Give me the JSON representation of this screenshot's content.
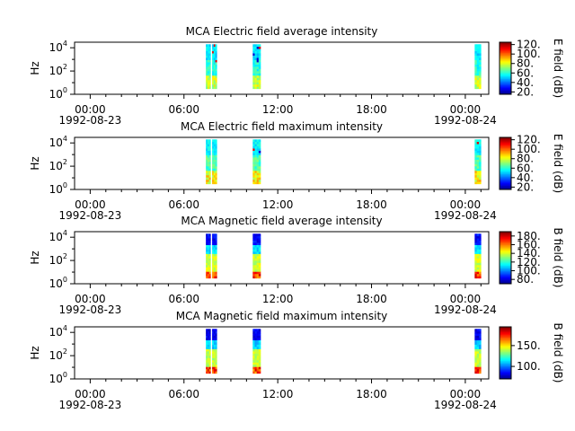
{
  "chart_data": [
    {
      "type": "heatmap",
      "title": "MCA  Electric field average intensity",
      "ylabel": "Hz",
      "colorbar_label": "E field (dB)",
      "colorbar_range": [
        15,
        125
      ],
      "colorbar_ticks": [
        "20.",
        "40.",
        "60.",
        "80.",
        "100.",
        "120."
      ],
      "colorbar_tick_values": [
        20,
        40,
        60,
        80,
        100,
        120
      ],
      "yscale": "log",
      "ylim": [
        1,
        30000
      ],
      "y_ticks": [
        {
          "base": "10",
          "exp": "0",
          "value": 1
        },
        {
          "base": "10",
          "exp": "2",
          "value": 100
        },
        {
          "base": "10",
          "exp": "4",
          "value": 10000
        }
      ],
      "x_range_hours": [
        -1,
        25.5
      ],
      "x_ticks": [
        {
          "hour": 0,
          "time": "00:00",
          "date": "1992-08-23"
        },
        {
          "hour": 6,
          "time": "06:00",
          "date": ""
        },
        {
          "hour": 12,
          "time": "12:00",
          "date": ""
        },
        {
          "hour": 18,
          "time": "18:00",
          "date": ""
        },
        {
          "hour": 24,
          "time": "00:00",
          "date": "1992-08-24"
        }
      ],
      "data_intervals_hours": [
        [
          7.4,
          7.7
        ],
        [
          7.8,
          8.1
        ],
        [
          10.4,
          10.9
        ],
        [
          24.6,
          25.0
        ]
      ],
      "intensity_profile": "low frequencies 55-75 dB (green), higher frequencies 40-60 dB (cyan), isolated red/blue spots near 10^3-10^4 Hz"
    },
    {
      "type": "heatmap",
      "title": "MCA  Electric field maximum intensity",
      "ylabel": "Hz",
      "colorbar_label": "E field (dB)",
      "colorbar_range": [
        15,
        125
      ],
      "colorbar_ticks": [
        "20.",
        "40.",
        "60.",
        "80.",
        "100.",
        "120."
      ],
      "colorbar_tick_values": [
        20,
        40,
        60,
        80,
        100,
        120
      ],
      "yscale": "log",
      "ylim": [
        1,
        30000
      ],
      "y_ticks": [
        {
          "base": "10",
          "exp": "0",
          "value": 1
        },
        {
          "base": "10",
          "exp": "2",
          "value": 100
        },
        {
          "base": "10",
          "exp": "4",
          "value": 10000
        }
      ],
      "x_range_hours": [
        -1,
        25.5
      ],
      "x_ticks": [
        {
          "hour": 0,
          "time": "00:00",
          "date": "1992-08-23"
        },
        {
          "hour": 6,
          "time": "06:00",
          "date": ""
        },
        {
          "hour": 12,
          "time": "12:00",
          "date": ""
        },
        {
          "hour": 18,
          "time": "18:00",
          "date": ""
        },
        {
          "hour": 24,
          "time": "00:00",
          "date": "1992-08-24"
        }
      ],
      "data_intervals_hours": [
        [
          7.4,
          7.7
        ],
        [
          7.8,
          8.1
        ],
        [
          10.4,
          10.9
        ],
        [
          24.6,
          25.0
        ]
      ],
      "intensity_profile": "low frequencies 60-85 dB (green-yellow), higher frequencies 45-65 dB, isolated spots near 10^3-10^4 Hz"
    },
    {
      "type": "heatmap",
      "title": "MCA  Magnetic field average intensity",
      "ylabel": "Hz",
      "colorbar_label": "B field (dB)",
      "colorbar_range": [
        70,
        190
      ],
      "colorbar_ticks": [
        "80.",
        "100.",
        "120.",
        "140.",
        "160.",
        "180."
      ],
      "colorbar_tick_values": [
        80,
        100,
        120,
        140,
        160,
        180
      ],
      "yscale": "log",
      "ylim": [
        1,
        30000
      ],
      "y_ticks": [
        {
          "base": "10",
          "exp": "0",
          "value": 1
        },
        {
          "base": "10",
          "exp": "2",
          "value": 100
        },
        {
          "base": "10",
          "exp": "4",
          "value": 10000
        }
      ],
      "x_range_hours": [
        -1,
        25.5
      ],
      "x_ticks": [
        {
          "hour": 0,
          "time": "00:00",
          "date": "1992-08-23"
        },
        {
          "hour": 6,
          "time": "06:00",
          "date": ""
        },
        {
          "hour": 12,
          "time": "12:00",
          "date": ""
        },
        {
          "hour": 18,
          "time": "18:00",
          "date": ""
        },
        {
          "hour": 24,
          "time": "00:00",
          "date": "1992-08-24"
        }
      ],
      "data_intervals_hours": [
        [
          7.4,
          7.7
        ],
        [
          7.8,
          8.1
        ],
        [
          10.4,
          10.9
        ],
        [
          24.6,
          25.0
        ]
      ],
      "intensity_profile": "low frequencies 140-170 dB (yellow-orange), mid frequencies 120-135 dB (green), top frequencies 80-100 dB (blue)"
    },
    {
      "type": "heatmap",
      "title": "MCA  Magnetic field maximum intensity",
      "ylabel": "Hz",
      "colorbar_label": "B field (dB)",
      "colorbar_range": [
        70,
        195
      ],
      "colorbar_ticks": [
        "100.",
        "150."
      ],
      "colorbar_tick_values": [
        100,
        150
      ],
      "yscale": "log",
      "ylim": [
        1,
        30000
      ],
      "y_ticks": [
        {
          "base": "10",
          "exp": "0",
          "value": 1
        },
        {
          "base": "10",
          "exp": "2",
          "value": 100
        },
        {
          "base": "10",
          "exp": "4",
          "value": 10000
        }
      ],
      "x_range_hours": [
        -1,
        25.5
      ],
      "x_ticks": [
        {
          "hour": 0,
          "time": "00:00",
          "date": "1992-08-23"
        },
        {
          "hour": 6,
          "time": "06:00",
          "date": ""
        },
        {
          "hour": 12,
          "time": "12:00",
          "date": ""
        },
        {
          "hour": 18,
          "time": "18:00",
          "date": ""
        },
        {
          "hour": 24,
          "time": "00:00",
          "date": "1992-08-24"
        }
      ],
      "data_intervals_hours": [
        [
          7.4,
          7.7
        ],
        [
          7.8,
          8.1
        ],
        [
          10.4,
          10.9
        ],
        [
          24.6,
          25.0
        ]
      ],
      "intensity_profile": "low frequencies 150-185 dB (yellow-red), mid frequencies 125-140 dB (green), top frequencies 85-105 dB (blue)"
    }
  ]
}
